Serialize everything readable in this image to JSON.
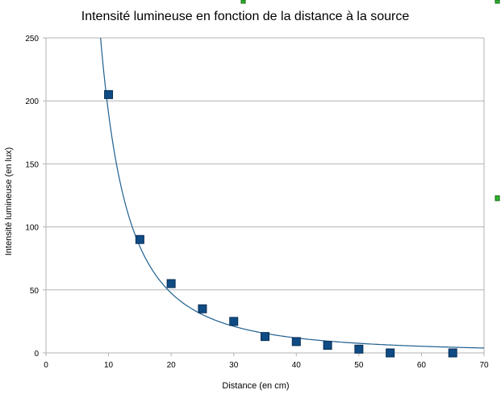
{
  "chart_data": {
    "type": "scatter",
    "title": "Intensité lumineuse en fonction de la distance à la source",
    "xlabel": "Distance (en cm)",
    "ylabel": "Intensité lumineuse (en lux)",
    "xlim": [
      0,
      70
    ],
    "ylim": [
      0,
      250
    ],
    "xticks": [
      "0",
      "10",
      "20",
      "30",
      "40",
      "50",
      "60",
      "70"
    ],
    "yticks": [
      "0",
      "50",
      "100",
      "150",
      "200",
      "250"
    ],
    "grid": "horizontal",
    "series": [
      {
        "x": [
          10,
          15,
          20,
          25,
          30,
          35,
          40,
          45,
          50,
          55,
          65
        ],
        "y": [
          205,
          90,
          55,
          35,
          25,
          13,
          9,
          6,
          3,
          0,
          0
        ],
        "marker": "square",
        "color": "#0f4b84"
      }
    ],
    "trendline": {
      "type": "power",
      "coefficient": 19000,
      "exponent": -2,
      "color": "#1f5f8f"
    }
  }
}
